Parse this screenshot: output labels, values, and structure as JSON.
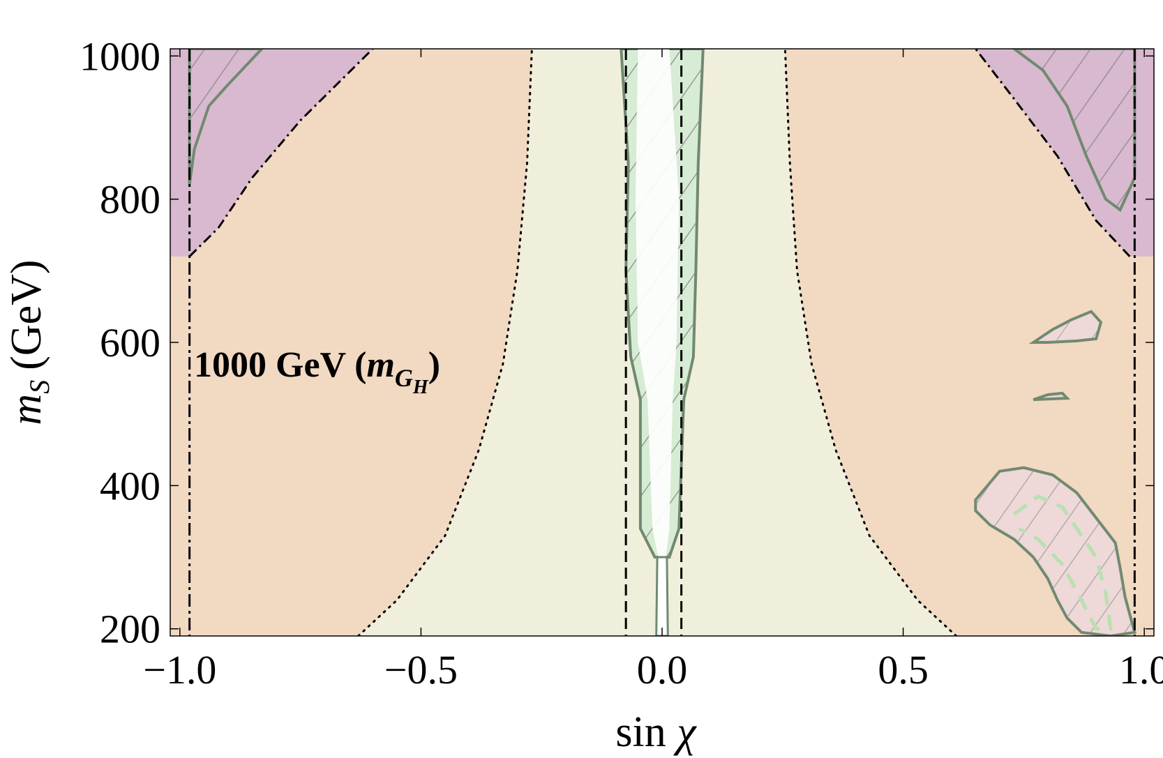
{
  "chart_data": {
    "type": "contour",
    "title": "",
    "annotation": {
      "main": "1000 GeV (",
      "var": "m",
      "sub": "G",
      "subsub": "H",
      "close": ")"
    },
    "xlabel": {
      "main": "sin ",
      "symbol": "χ"
    },
    "ylabel": {
      "var": "m",
      "sub": "S",
      "unit": "(GeV)"
    },
    "xlim": [
      -1.02,
      1.02
    ],
    "ylim": [
      190,
      1010
    ],
    "x_ticks": [
      {
        "value": -1.0,
        "label": "−1.0"
      },
      {
        "value": -0.5,
        "label": "−0.5"
      },
      {
        "value": 0.0,
        "label": "0.0"
      },
      {
        "value": 0.5,
        "label": "0.5"
      },
      {
        "value": 1.0,
        "label": "1.0"
      }
    ],
    "y_ticks": [
      {
        "value": 200,
        "label": "200"
      },
      {
        "value": 400,
        "label": "400"
      },
      {
        "value": 600,
        "label": "600"
      },
      {
        "value": 800,
        "label": "800"
      },
      {
        "value": 1000,
        "label": "1000"
      }
    ],
    "colors": {
      "excluded": "#f2d9c2",
      "allowed_band": "#f0efdc",
      "purple_region": "#c9a8d6",
      "green_region": "#d7ecd4",
      "pink_region": "#eed8d8",
      "contour": "#708a70",
      "hatch": "#8a8a8a",
      "boundary": "#000000",
      "center_fill": "#ffffff"
    },
    "regions": {
      "allowed_band_left": [
        [
          -0.63,
          190
        ],
        [
          -0.55,
          240
        ],
        [
          -0.45,
          330
        ],
        [
          -0.38,
          450
        ],
        [
          -0.33,
          570
        ],
        [
          -0.3,
          700
        ],
        [
          -0.28,
          850
        ],
        [
          -0.27,
          1010
        ]
      ],
      "allowed_band_right": [
        [
          0.61,
          190
        ],
        [
          0.53,
          240
        ],
        [
          0.43,
          330
        ],
        [
          0.36,
          450
        ],
        [
          0.31,
          570
        ],
        [
          0.28,
          700
        ],
        [
          0.265,
          850
        ],
        [
          0.255,
          1010
        ]
      ],
      "purple_left": [
        [
          -0.98,
          720
        ],
        [
          -0.92,
          760
        ],
        [
          -0.85,
          830
        ],
        [
          -0.75,
          910
        ],
        [
          -0.66,
          970
        ],
        [
          -0.6,
          1010
        ]
      ],
      "purple_right": [
        [
          0.97,
          720
        ],
        [
          0.9,
          770
        ],
        [
          0.82,
          860
        ],
        [
          0.73,
          940
        ],
        [
          0.65,
          1010
        ]
      ],
      "central_left": [
        [
          -0.015,
          300
        ],
        [
          -0.045,
          340
        ],
        [
          -0.045,
          520
        ],
        [
          -0.065,
          580
        ],
        [
          -0.075,
          700
        ],
        [
          -0.07,
          850
        ],
        [
          -0.085,
          1010
        ]
      ],
      "central_right": [
        [
          0.015,
          300
        ],
        [
          0.035,
          340
        ],
        [
          0.045,
          520
        ],
        [
          0.065,
          580
        ],
        [
          0.07,
          700
        ],
        [
          0.075,
          850
        ],
        [
          0.085,
          1010
        ]
      ],
      "stem": [
        [
          -0.005,
          190
        ],
        [
          0.005,
          300
        ]
      ],
      "island_upper": [
        [
          0.77,
          600
        ],
        [
          0.81,
          618
        ],
        [
          0.85,
          632
        ],
        [
          0.89,
          643
        ],
        [
          0.91,
          628
        ],
        [
          0.9,
          605
        ],
        [
          0.86,
          602
        ],
        [
          0.8,
          600
        ]
      ],
      "island_lower": [
        [
          0.77,
          520
        ],
        [
          0.8,
          527
        ],
        [
          0.83,
          529
        ],
        [
          0.84,
          522
        ]
      ],
      "blob_lower_right": [
        [
          0.65,
          380
        ],
        [
          0.7,
          420
        ],
        [
          0.75,
          425
        ],
        [
          0.81,
          415
        ],
        [
          0.86,
          390
        ],
        [
          0.9,
          355
        ],
        [
          0.94,
          320
        ],
        [
          0.95,
          285
        ],
        [
          0.96,
          245
        ],
        [
          0.97,
          220
        ],
        [
          0.98,
          195
        ],
        [
          0.93,
          190
        ],
        [
          0.87,
          195
        ],
        [
          0.84,
          215
        ],
        [
          0.82,
          240
        ],
        [
          0.8,
          270
        ],
        [
          0.77,
          300
        ],
        [
          0.73,
          325
        ],
        [
          0.68,
          345
        ],
        [
          0.65,
          365
        ]
      ]
    },
    "lines": {
      "vertical_dash_dot": [
        -0.98,
        0.98
      ],
      "vertical_dashed": [
        -0.075,
        0.04
      ]
    }
  }
}
